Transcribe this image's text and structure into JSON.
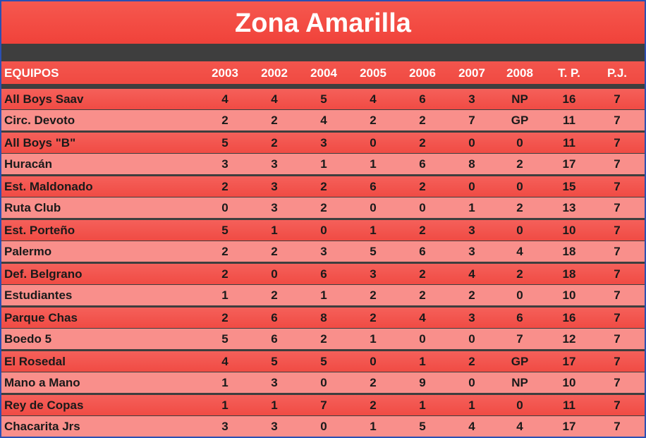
{
  "header": {
    "title": "Zona Amarilla"
  },
  "table": {
    "columns": [
      "EQUIPOS",
      "2003",
      "2002",
      "2004",
      "2005",
      "2006",
      "2007",
      "2008",
      "T. P.",
      "P.J."
    ],
    "rows": [
      [
        "All Boys Saav",
        4,
        4,
        5,
        4,
        6,
        3,
        "NP",
        16,
        7
      ],
      [
        "Circ. Devoto",
        2,
        2,
        4,
        2,
        2,
        7,
        "GP",
        11,
        7
      ],
      [
        "All Boys \"B\"",
        5,
        2,
        3,
        0,
        2,
        0,
        0,
        11,
        7
      ],
      [
        "Huracán",
        3,
        3,
        1,
        1,
        6,
        8,
        2,
        17,
        7
      ],
      [
        "Est. Maldonado",
        2,
        3,
        2,
        6,
        2,
        0,
        0,
        15,
        7
      ],
      [
        "Ruta Club",
        0,
        3,
        2,
        0,
        0,
        1,
        2,
        13,
        7
      ],
      [
        "Est. Porteño",
        5,
        1,
        0,
        1,
        2,
        3,
        0,
        10,
        7
      ],
      [
        "Palermo",
        2,
        2,
        3,
        5,
        6,
        3,
        4,
        18,
        7
      ],
      [
        "Def. Belgrano",
        2,
        0,
        6,
        3,
        2,
        4,
        2,
        18,
        7
      ],
      [
        "Estudiantes",
        1,
        2,
        1,
        2,
        2,
        2,
        0,
        10,
        7
      ],
      [
        "Parque Chas",
        2,
        6,
        8,
        2,
        4,
        3,
        6,
        16,
        7
      ],
      [
        "Boedo 5",
        5,
        6,
        2,
        1,
        0,
        0,
        7,
        12,
        7
      ],
      [
        "El Rosedal",
        4,
        5,
        5,
        0,
        1,
        2,
        "GP",
        17,
        7
      ],
      [
        "Mano a Mano",
        1,
        3,
        0,
        2,
        9,
        0,
        "NP",
        10,
        7
      ],
      [
        "Rey de Copas",
        1,
        1,
        7,
        2,
        1,
        1,
        0,
        11,
        7
      ],
      [
        "Chacarita Jrs",
        3,
        3,
        0,
        1,
        5,
        4,
        4,
        17,
        7
      ]
    ]
  }
}
